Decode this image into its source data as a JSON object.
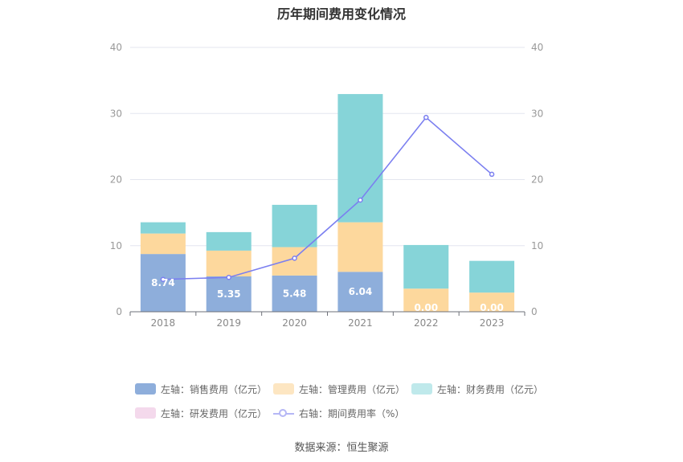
{
  "title": "历年期间费用变化情况",
  "source": "数据来源：恒生聚源",
  "chart_data": {
    "type": "bar",
    "stacked": true,
    "categories": [
      "2018",
      "2019",
      "2020",
      "2021",
      "2022",
      "2023"
    ],
    "ylim_left": [
      0,
      40
    ],
    "ylim_right": [
      0,
      40
    ],
    "yticks": [
      "0",
      "10",
      "20",
      "30",
      "40"
    ],
    "grid": true,
    "legend_position": "bottom",
    "series": [
      {
        "name": "左轴：销售费用（亿元）",
        "axis": "left",
        "kind": "bar",
        "color": "#8eaedb",
        "values": [
          8.74,
          5.35,
          5.48,
          6.04,
          0.0,
          0.0
        ],
        "labels": [
          "8.74",
          "5.35",
          "5.48",
          "6.04",
          "0.00",
          "0.00"
        ]
      },
      {
        "name": "左轴：管理费用（亿元）",
        "axis": "left",
        "kind": "bar",
        "color": "#fdd89d",
        "values": [
          3.1,
          3.9,
          4.3,
          7.5,
          3.5,
          2.9
        ]
      },
      {
        "name": "左轴：财务费用（亿元）",
        "axis": "left",
        "kind": "bar",
        "color": "#86d4d8",
        "values": [
          1.7,
          2.8,
          6.4,
          19.4,
          6.6,
          4.8
        ]
      },
      {
        "name": "左轴：研发费用（亿元）",
        "axis": "left",
        "kind": "bar",
        "color": "#f4d9ec",
        "values": [
          0,
          0,
          0,
          0,
          0,
          0
        ]
      },
      {
        "name": "右轴：期间费用率（%）",
        "axis": "right",
        "kind": "line",
        "color": "#7b7ff0",
        "values": [
          4.9,
          5.2,
          8.1,
          16.9,
          29.4,
          20.8
        ]
      }
    ]
  }
}
